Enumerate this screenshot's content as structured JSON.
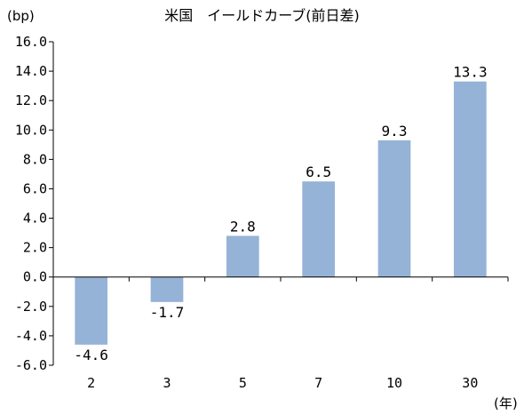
{
  "chart_data": {
    "type": "bar",
    "title": "米国　イールドカーブ(前日差)",
    "y_unit_label": "(bp)",
    "x_unit_label": "(年)",
    "categories": [
      "2",
      "3",
      "5",
      "7",
      "10",
      "30"
    ],
    "series": [
      {
        "values": [
          -4.6,
          -1.7,
          2.8,
          6.5,
          9.3,
          13.3
        ],
        "data_labels": [
          "-4.6",
          "-1.7",
          "2.8",
          "6.5",
          "9.3",
          "13.3"
        ]
      }
    ],
    "ylim": [
      -6.0,
      16.0
    ],
    "y_ticks": [
      16.0,
      14.0,
      12.0,
      10.0,
      8.0,
      6.0,
      4.0,
      2.0,
      0.0,
      -2.0,
      -4.0,
      -6.0
    ],
    "y_tick_labels": [
      "16.0",
      "14.0",
      "12.0",
      "10.0",
      "8.0",
      "6.0",
      "4.0",
      "2.0",
      "0.0",
      "-2.0",
      "-4.0",
      "-6.0"
    ],
    "grid": false,
    "legend": "none",
    "bar_color": "#95B3D7",
    "axis_color": "#000000"
  }
}
